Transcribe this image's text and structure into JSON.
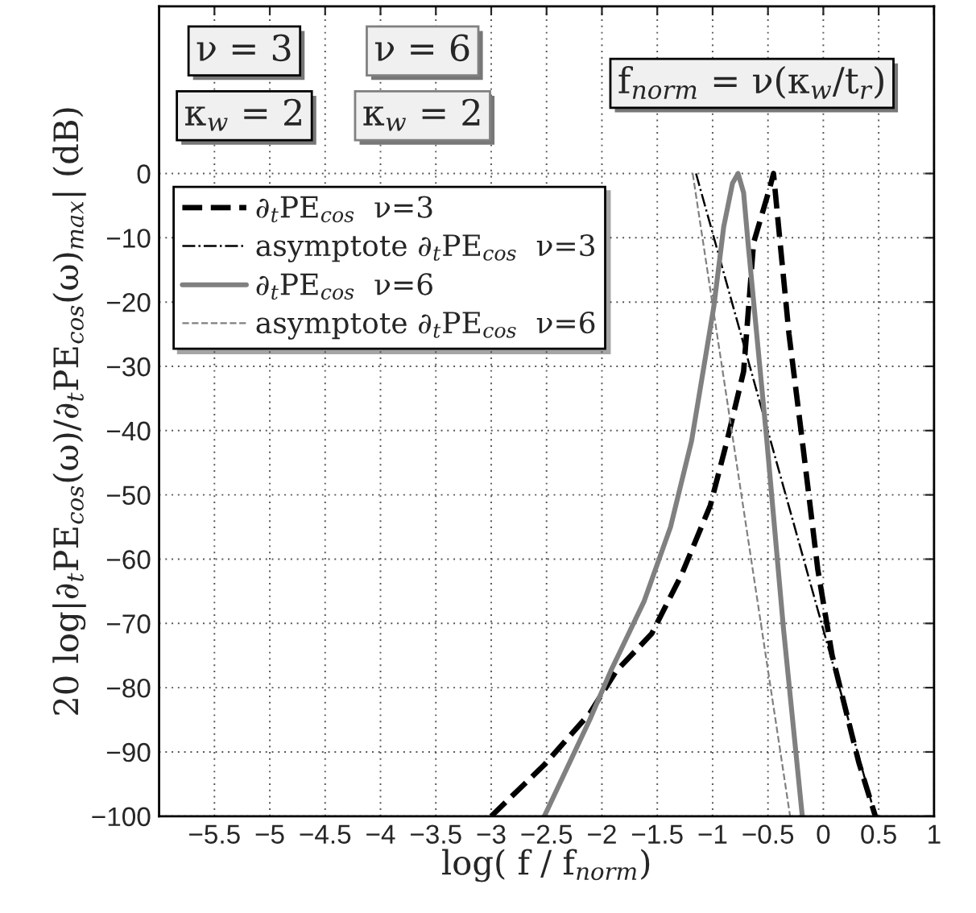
{
  "chart_data": {
    "type": "line",
    "xlabel": "log( f / f$_{norm}$)",
    "ylabel": "20 log|∂$_{t}$PE$_{cos}$(ω)/∂$_{t}$PE$_{cos}$(ω)$_{max}$| (dB)",
    "xlim": [
      -6,
      1
    ],
    "xticks": [
      -5.5,
      -5,
      -4.5,
      -4,
      -3.5,
      -3,
      -2.5,
      -2,
      -1.5,
      -1,
      -0.5,
      0,
      0.5,
      1
    ],
    "ylim": [
      -100,
      26
    ],
    "yticks": [
      -100,
      -90,
      -80,
      -70,
      -60,
      -50,
      -40,
      -30,
      -20,
      -10,
      0
    ],
    "grid": true,
    "legend": "top left",
    "annotations": [
      "ν = 3",
      "κ$_{w}$ = 2",
      "ν = 6",
      "κ$_{w}$ = 2",
      "f$_{norm}$ = ν(κ$_{w}$/t$_{r}$)"
    ],
    "series": [
      {
        "name": "∂$_{t}$PE$_{cos}$  ν=3",
        "color": "#000000",
        "line_style": "dashed",
        "x": [
          -3.0,
          -2.52,
          -2.11,
          -1.87,
          -1.55,
          -1.28,
          -1.02,
          -0.87,
          -0.72,
          -0.63,
          -0.48,
          -0.45,
          -0.39,
          -0.31,
          -0.19,
          -0.05,
          0.08,
          0.32,
          0.47
        ],
        "values": [
          -100,
          -92,
          -84,
          -77.4,
          -71.6,
          -62.4,
          -51.6,
          -41.6,
          -30.8,
          -10.8,
          -2,
          0,
          -10.8,
          -25,
          -41.6,
          -61.6,
          -75,
          -91.6,
          -100
        ]
      },
      {
        "name": "asymptote ∂$_{t}$PE$_{cos}$  ν=3",
        "color": "#000000",
        "line_style": "dashdot",
        "x": [
          -1.15,
          0.47
        ],
        "values": [
          0,
          -100
        ]
      },
      {
        "name": "∂$_{t}$PE$_{cos}$  ν=6",
        "color": "#808080",
        "line_style": "solid",
        "x": [
          -2.52,
          -2.11,
          -1.92,
          -1.62,
          -1.38,
          -1.19,
          -0.99,
          -0.9,
          -0.82,
          -0.77,
          -0.72,
          -0.68,
          -0.51,
          -0.36,
          -0.19
        ],
        "values": [
          -100,
          -85,
          -77.4,
          -66.6,
          -55,
          -41.6,
          -20.8,
          -8.3,
          -1.5,
          0,
          -3,
          -10.8,
          -41.6,
          -70.8,
          -100
        ]
      },
      {
        "name": "asymptote ∂$_{t}$PE$_{cos}$  ν=6",
        "color": "#808080",
        "line_style": "dashed",
        "x": [
          -1.18,
          -0.3
        ],
        "values": [
          0,
          -100
        ]
      }
    ]
  }
}
